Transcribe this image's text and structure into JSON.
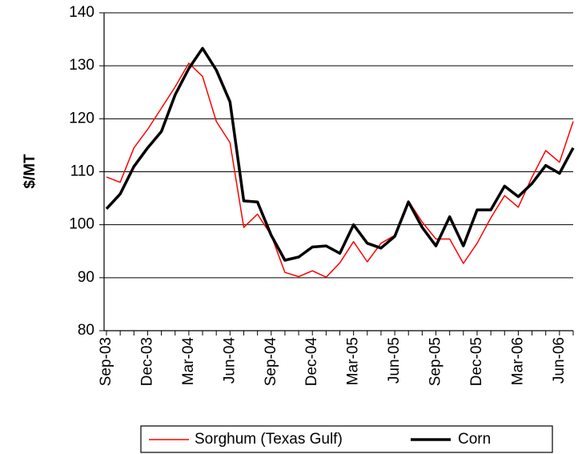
{
  "chart_data": {
    "type": "line",
    "ylabel": "$/MT",
    "categories": [
      "Sep-03",
      null,
      null,
      "Dec-03",
      null,
      null,
      "Mar-04",
      null,
      null,
      "Jun-04",
      null,
      null,
      "Sep-04",
      null,
      null,
      "Dec-04",
      null,
      null,
      "Mar-05",
      null,
      null,
      "Jun-05",
      null,
      null,
      "Sep-05",
      null,
      null,
      "Dec-05",
      null,
      null,
      "Mar-06",
      null,
      null,
      "Jun-06",
      null
    ],
    "series": [
      {
        "name": "Sorghum (Texas Gulf)",
        "color": "#ff0000",
        "width": 1.5,
        "values": [
          109,
          108,
          114.5,
          118,
          122,
          126,
          130.5,
          128,
          119.5,
          115.5,
          99.5,
          102,
          98,
          91,
          90.2,
          91.3,
          90.1,
          92.8,
          96.8,
          93,
          96.5,
          98,
          104.5,
          100.5,
          97.3,
          97.3,
          92.7,
          96.5,
          101.3,
          105.5,
          103.3,
          109,
          114,
          111.8,
          119.5
        ]
      },
      {
        "name": "Corn",
        "color": "#000000",
        "width": 3.5,
        "values": [
          103,
          105.8,
          111,
          114.5,
          117.6,
          124.5,
          129.5,
          133.3,
          129.2,
          123.2,
          104.5,
          104.3,
          98,
          93.3,
          93.9,
          95.8,
          96,
          94.6,
          100,
          96.5,
          95.6,
          97.8,
          104.3,
          99.5,
          96,
          101.5,
          96,
          102.8,
          102.8,
          107.3,
          105.3,
          107.8,
          111.2,
          109.7,
          114.5
        ]
      }
    ],
    "ylim": [
      80,
      140
    ],
    "yticks": [
      80,
      90,
      100,
      110,
      120,
      130,
      140
    ],
    "grid": true,
    "legend": "bottom"
  }
}
